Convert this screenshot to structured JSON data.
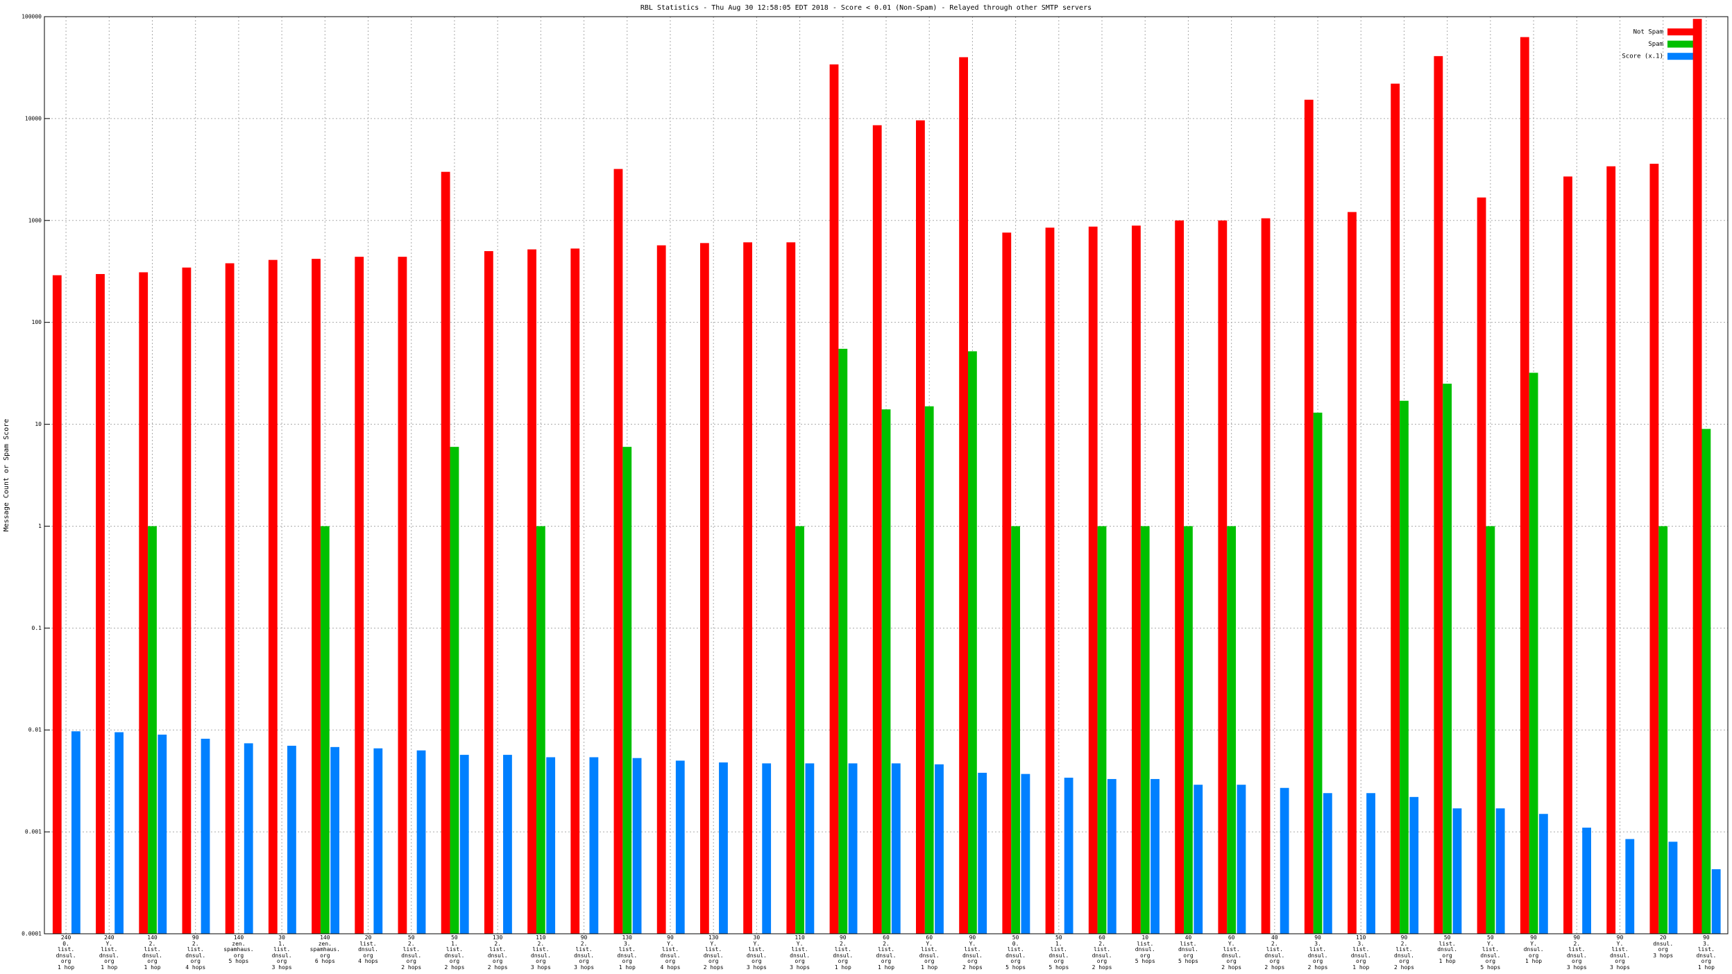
{
  "chart_data": {
    "type": "bar",
    "title": "RBL Statistics - Thu Aug 30 12:58:05 EDT 2018 - Score < 0.01 (Non-Spam) - Relayed through other SMTP servers",
    "y_label": "Message Count or Spam Score",
    "log_scale": true,
    "grid": true,
    "legend": "upper right",
    "ylim": [
      0.0001,
      100000
    ],
    "yticks": [
      0.0001,
      0.001,
      0.01,
      0.1,
      1,
      10,
      100,
      1000,
      10000,
      100000
    ],
    "categories": [
      "240\n0.\nlist.\ndnsul.\norg\n1 hop",
      "240\nY.\nlist.\ndnsul.\norg\n1 hop",
      "140\n2.\nlist.\ndnsul.\norg\n1 hop",
      "90\n2.\nlist.\ndnsul.\norg\n4 hops",
      "140\nzen.\nspamhaus.\norg\n5 hops",
      "30\n1.\nlist.\ndnsul.\norg\n3 hops",
      "140\nzen.\nspamhaus.\norg\n6 hops",
      "20\nlist.\ndnsul.\norg\n4 hops",
      "50\n2.\nlist.\ndnsul.\norg\n2 hops",
      "50\n1.\nlist.\ndnsul.\norg\n2 hops",
      "130\n2.\nlist.\ndnsul.\norg\n2 hops",
      "110\n2.\nlist.\ndnsul.\norg\n3 hops",
      "90\n2.\nlist.\ndnsul.\norg\n3 hops",
      "130\n3.\nlist.\ndnsul.\norg\n1 hop",
      "90\nY.\nlist.\ndnsul.\norg\n4 hops",
      "130\nY.\nlist.\ndnsul.\norg\n2 hops",
      "30\nY.\nlist.\ndnsul.\norg\n3 hops",
      "110\nY.\nlist.\ndnsul.\norg\n3 hops",
      "90\n2.\nlist.\ndnsul.\norg\n1 hop",
      "60\n2.\nlist.\ndnsul.\norg\n1 hop",
      "60\nY.\nlist.\ndnsul.\norg\n1 hop",
      "90\nY.\nlist.\ndnsul.\norg\n2 hops",
      "50\n0.\nlist.\ndnsul.\norg\n5 hops",
      "50\n1.\nlist.\ndnsul.\norg\n5 hops",
      "60\n2.\nlist.\ndnsul.\norg\n2 hops",
      "10\nlist.\ndnsul.\norg\n5 hops",
      "40\nlist.\ndnsul.\norg\n5 hops",
      "60\nY.\nlist.\ndnsul.\norg\n2 hops",
      "40\n2.\nlist.\ndnsul.\norg\n2 hops",
      "90\n3.\nlist.\ndnsul.\norg\n2 hops",
      "110\n3.\nlist.\ndnsul.\norg\n1 hop",
      "90\n2.\nlist.\ndnsul.\norg\n2 hops",
      "50\nlist.\ndnsul.\norg\n1 hop",
      "50\nY.\nlist.\ndnsul.\norg\n5 hops",
      "90\nY.\ndnsul.\norg\n1 hop",
      "90\n2.\nlist.\ndnsul.\norg\n3 hops",
      "90\nY.\nlist.\ndnsul.\norg\n3 hops",
      "20\ndnsul.\norg\n3 hops",
      "90\n3.\nlist.\ndnsul.\norg\n1 hop"
    ],
    "series": [
      {
        "name": "Not Spam",
        "color": "#ff0000",
        "values": [
          290,
          298,
          310,
          345,
          380,
          410,
          420,
          440,
          440,
          3000,
          500,
          520,
          530,
          3200,
          570,
          600,
          610,
          610,
          34000,
          8600,
          9600,
          40000,
          760,
          850,
          870,
          890,
          1000,
          1000,
          1050,
          15300,
          1210,
          22000,
          41000,
          1680,
          63000,
          2700,
          3400,
          3600,
          95000
        ]
      },
      {
        "name": "Spam",
        "color": "#00c000",
        "values": [
          null,
          null,
          1,
          null,
          null,
          null,
          1,
          null,
          null,
          6,
          null,
          1,
          null,
          6,
          null,
          null,
          null,
          1,
          55,
          14,
          15,
          52,
          1,
          null,
          1,
          1,
          1,
          1,
          null,
          13,
          null,
          17,
          25,
          1,
          32,
          null,
          null,
          1,
          9
        ]
      },
      {
        "name": "Score (x.1)",
        "color": "#0080ff",
        "values": [
          0.0097,
          0.0095,
          0.009,
          0.0082,
          0.0074,
          0.007,
          0.0068,
          0.0066,
          0.0063,
          0.0057,
          0.0057,
          0.0054,
          0.0054,
          0.0053,
          0.005,
          0.0048,
          0.0047,
          0.0047,
          0.0047,
          0.0047,
          0.0046,
          0.0038,
          0.0037,
          0.0034,
          0.0033,
          0.0033,
          0.0029,
          0.0029,
          0.0027,
          0.0024,
          0.0024,
          0.0022,
          0.0017,
          0.0017,
          0.0015,
          0.0011,
          0.00085,
          0.0008,
          0.00043
        ]
      }
    ]
  }
}
